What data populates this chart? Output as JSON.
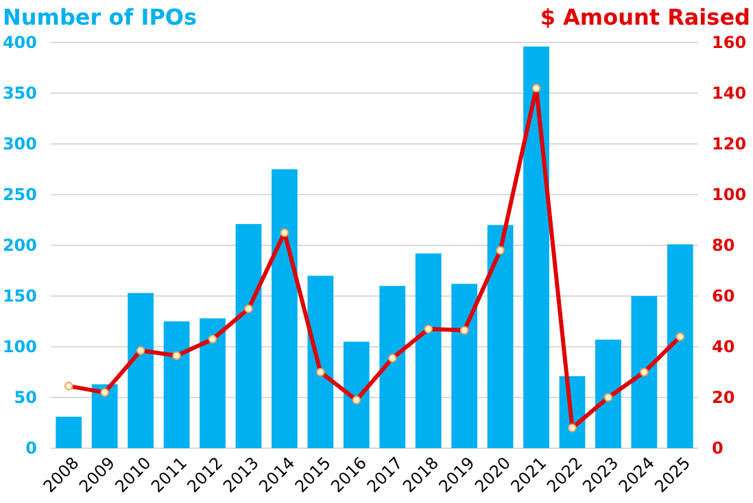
{
  "chart_data": {
    "type": "bar",
    "ylabel": "Number of IPOs",
    "y2label": "$ Amount Raised",
    "categories": [
      "2008",
      "2009",
      "2010",
      "2011",
      "2012",
      "2013",
      "2014",
      "2015",
      "2016",
      "2017",
      "2018",
      "2019",
      "2020",
      "2021",
      "2022",
      "2023",
      "2024",
      "2025"
    ],
    "series": [
      {
        "color": "#00b0f0",
        "values": [
          31,
          63,
          153,
          125,
          128,
          221,
          275,
          170,
          105,
          160,
          192,
          162,
          220,
          396,
          71,
          107,
          150,
          201
        ]
      },
      {
        "type": "line",
        "axis": "y2",
        "color": "#e00000",
        "marker": "circle",
        "values": [
          24.5,
          22,
          38.5,
          36.5,
          43,
          55,
          85,
          30,
          19,
          35.5,
          47,
          46.5,
          78,
          142,
          8,
          20,
          30,
          44
        ]
      }
    ],
    "ylim": [
      0,
      400
    ],
    "yticks": [
      0,
      50,
      100,
      150,
      200,
      250,
      300,
      350,
      400
    ],
    "y2lim": [
      0,
      160
    ],
    "y2ticks": [
      0,
      20,
      40,
      60,
      80,
      100,
      120,
      140,
      160
    ],
    "grid": "y"
  }
}
